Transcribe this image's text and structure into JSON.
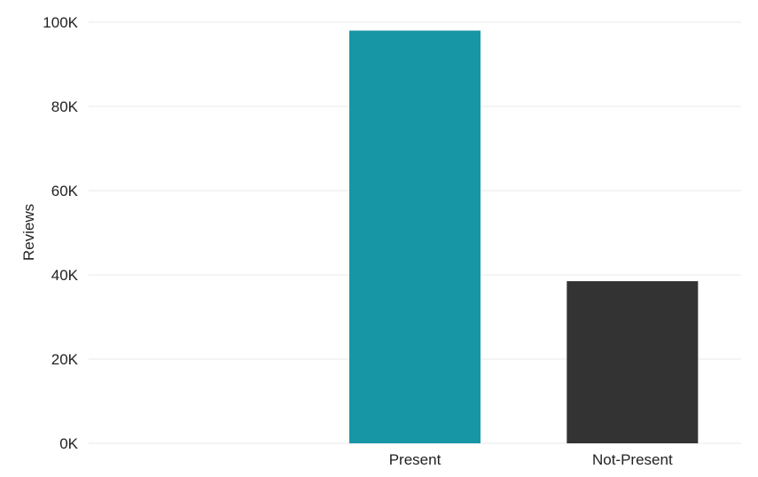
{
  "chart_data": {
    "type": "bar",
    "categories": [
      "Present",
      "Not-Present"
    ],
    "values": [
      98000,
      38500
    ],
    "colors": [
      "#1797A6",
      "#333333"
    ],
    "ylabel": "Reviews",
    "xlabel": "",
    "ylim": [
      0,
      100000
    ],
    "yticks": [
      0,
      20000,
      40000,
      60000,
      80000,
      100000
    ],
    "ytick_labels": [
      "0K",
      "20K",
      "40K",
      "60K",
      "80K",
      "100K"
    ],
    "grid": true
  }
}
